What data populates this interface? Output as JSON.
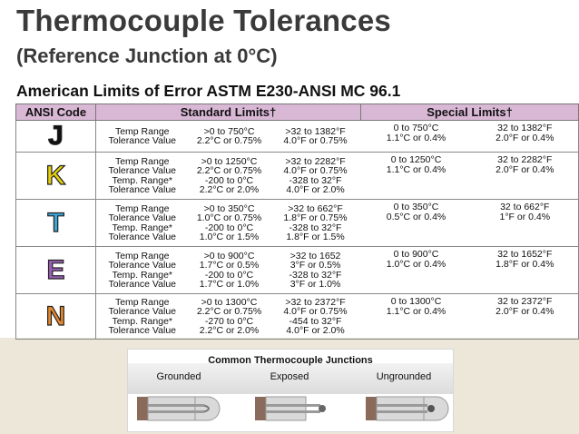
{
  "title": "Thermocouple Tolerances",
  "subtitle": "(Reference Junction at 0°C)",
  "section": "American Limits of Error ASTM E230-ANSI MC 96.1",
  "table": {
    "headers": {
      "code": "ANSI Code",
      "standard": "Standard Limits†",
      "special": "Special Limits†"
    },
    "rows": [
      {
        "code": "J",
        "color": "#111111",
        "labels": "Temp Range\nTolerance Value",
        "std_c": ">0 to 750°C\n2.2°C or 0.75%",
        "std_f": ">32 to 1382°F\n4.0°F or 0.75%",
        "spc_c": "0 to 750°C\n1.1°C or 0.4%",
        "spc_f": "32 to 1382°F\n2.0°F or 0.4%"
      },
      {
        "code": "K",
        "color": "#e5cf10",
        "labels": "Temp Range\nTolerance Value\nTemp. Range*\nTolerance Value",
        "std_c": ">0 to 1250°C\n2.2°C or 0.75%\n-200 to 0°C\n2.2°C or 2.0%",
        "std_f": ">32 to 2282°F\n4.0°F or 0.75%\n-328 to 32°F\n4.0°F or 2.0%",
        "spc_c": "0 to 1250°C\n1.1°C or 0.4%",
        "spc_f": "32 to 2282°F\n2.0°F or 0.4%"
      },
      {
        "code": "T",
        "color": "#3aa6d6",
        "labels": "Temp Range\nTolerance Value\nTemp. Range*\nTolerance Value",
        "std_c": ">0 to 350°C\n1.0°C or 0.75%\n-200 to 0°C\n1.0°C or 1.5%",
        "std_f": ">32 to 662°F\n1.8°F or 0.75%\n-328 to 32°F\n1.8°F or 1.5%",
        "spc_c": "0 to 350°C\n0.5°C or 0.4%",
        "spc_f": "32 to 662°F\n1°F or 0.4%"
      },
      {
        "code": "E",
        "color": "#9b5fb5",
        "labels": "Temp Range\nTolerance Value\nTemp. Range*\nTolerance Value",
        "std_c": ">0 to 900°C\n1.7°C or 0.5%\n-200 to 0°C\n1.7°C or 1.0%",
        "std_f": ">32 to 1652\n3°F or 0.5%\n-328 to 32°F\n3°F or 1.0%",
        "spc_c": "0 to 900°C\n1.0°C or 0.4%",
        "spc_f": "32 to 1652°F\n1.8°F or 0.4%"
      },
      {
        "code": "N",
        "color": "#e88a2e",
        "labels": "Temp Range\nTolerance Value\nTemp. Range*\nTolerance Value",
        "std_c": ">0 to 1300°C\n2.2°C or 0.75%\n-270 to 0°C\n2.2°C or 2.0%",
        "std_f": ">32 to 2372°F\n4.0°F or 0.75%\n-454 to 32°F\n4.0°F or 2.0%",
        "spc_c": "0 to 1300°C\n1.1°C or 0.4%",
        "spc_f": "32 to 2372°F\n2.0°F or 0.4%"
      }
    ]
  },
  "junctions": {
    "title": "Common Thermocouple Junctions",
    "labels": [
      "Grounded",
      "Exposed",
      "Ungrounded"
    ]
  }
}
